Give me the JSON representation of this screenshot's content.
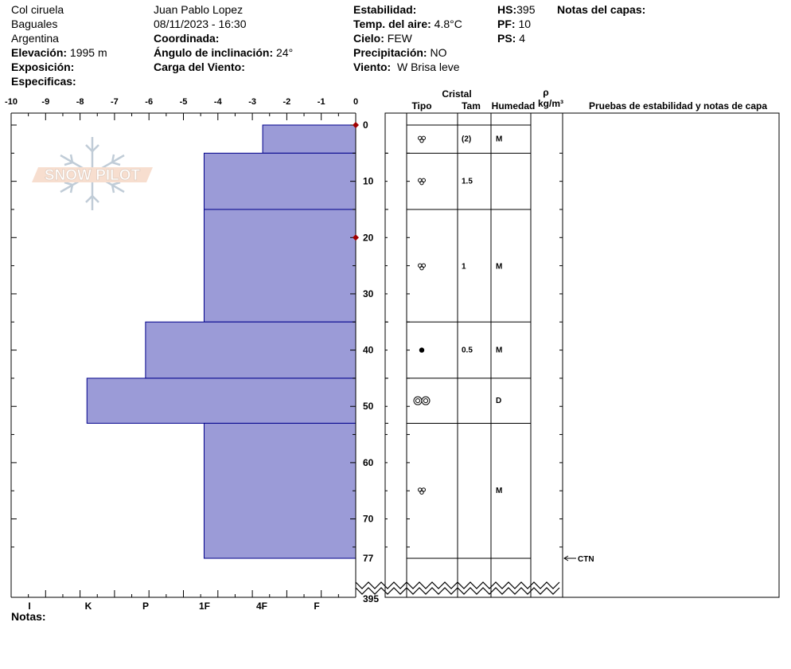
{
  "header": {
    "location": "Col ciruela",
    "range": "Baguales",
    "country": "Argentina",
    "elevation_label": "Elevación:",
    "elevation": "1995 m",
    "aspect_label": "Exposición:",
    "specifics_label": "Especificas:",
    "observer": "Juan Pablo  Lopez",
    "datetime": "08/11/2023 - 16:30",
    "coord_label": "Coordinada:",
    "slope_label": "Ángulo de inclinación:",
    "slope": "24°",
    "wind_load_label": "Carga del Viento:",
    "stability_label": "Estabilidad:",
    "air_temp_label": "Temp. del aire:",
    "air_temp": "4.8°C",
    "sky_label": "Cielo:",
    "sky": "FEW",
    "precip_label": "Precipitación:",
    "precip": "NO",
    "wind_label": "Viento:",
    "wind": "W Brisa leve",
    "hs_label": "HS:",
    "hs": "395",
    "pf_label": "PF:",
    "pf": "10",
    "ps_label": "PS:",
    "ps": "4",
    "layer_notes_label": "Notas del capas:",
    "notes_label": "Notas:"
  },
  "table_headers": {
    "crystal": "Cristal",
    "type": "Tipo",
    "size": "Tam",
    "moisture": "Humedad",
    "rho": "ρ",
    "density_unit": "kg/m³",
    "tests": "Pruebas de estabilidad y notas de capa"
  },
  "logo_text": "SNOW PILOT",
  "colors": {
    "hardness_fill": "#9b9bd7",
    "hardness_stroke": "#00008b",
    "temp_marker": "#a00000"
  },
  "chart_data": {
    "type": "snowpit",
    "temperature_axis": {
      "ticks": [
        "-10",
        "-9",
        "-8",
        "-7",
        "-6",
        "-5",
        "-4",
        "-3",
        "-2",
        "-1",
        "0"
      ],
      "range": [
        -10,
        0
      ]
    },
    "hardness_axis": {
      "labels": [
        "I",
        "K",
        "P",
        "1F",
        "4F",
        "F"
      ]
    },
    "depth_axis": {
      "labels": [
        "0",
        "10",
        "20",
        "30",
        "40",
        "50",
        "60",
        "70",
        "77"
      ],
      "bottom_label": "395",
      "range": [
        0,
        77
      ]
    },
    "layers": [
      {
        "top": 0,
        "bottom": 5,
        "hardness": 2.7,
        "type_icon": "rounded-grains",
        "size": "(2)",
        "moisture": "M"
      },
      {
        "top": 5,
        "bottom": 15,
        "hardness": 4.4,
        "type_icon": "rounded-grains",
        "size": "1.5",
        "moisture": ""
      },
      {
        "top": 15,
        "bottom": 35,
        "hardness": 4.4,
        "type_icon": "rounded-grains",
        "size": "1",
        "moisture": "M"
      },
      {
        "top": 35,
        "bottom": 45,
        "hardness": 6.1,
        "type_icon": "graupel",
        "size": "0.5",
        "moisture": "M"
      },
      {
        "top": 45,
        "bottom": 53,
        "hardness": 7.8,
        "type_icon": "melt-forms",
        "size": "",
        "moisture": "D"
      },
      {
        "top": 53,
        "bottom": 77,
        "hardness": 4.4,
        "type_icon": "rounded-grains",
        "size": "",
        "moisture": "M"
      }
    ],
    "temperature_points": [
      {
        "depth": 0,
        "temp": 0
      },
      {
        "depth": 20,
        "temp": 0
      }
    ],
    "tests": [
      {
        "depth": 77,
        "label": "CTN"
      }
    ]
  }
}
